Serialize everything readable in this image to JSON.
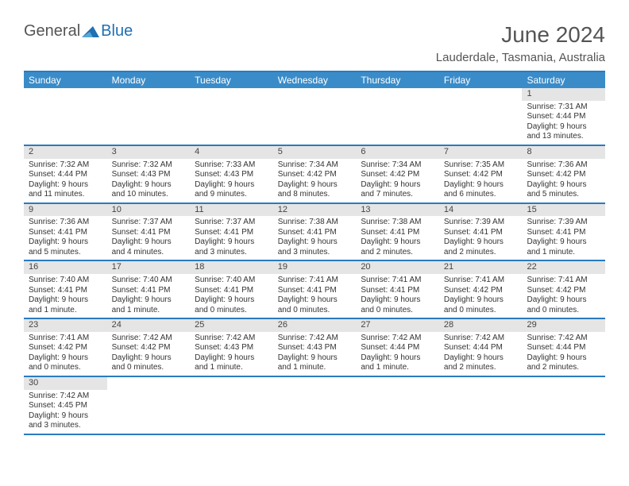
{
  "brand": {
    "text_general": "General",
    "text_blue": "Blue",
    "triangle_color": "#1f6fb2"
  },
  "header": {
    "month_title": "June 2024",
    "location": "Lauderdale, Tasmania, Australia"
  },
  "colors": {
    "header_bar": "#3a8cc9",
    "header_text": "#ffffff",
    "row_divider": "#2a7bbf",
    "daynum_bg": "#e5e5e5",
    "body_text": "#333333"
  },
  "day_headers": [
    "Sunday",
    "Monday",
    "Tuesday",
    "Wednesday",
    "Thursday",
    "Friday",
    "Saturday"
  ],
  "weeks": [
    [
      {
        "empty": true
      },
      {
        "empty": true
      },
      {
        "empty": true
      },
      {
        "empty": true
      },
      {
        "empty": true
      },
      {
        "empty": true
      },
      {
        "day": "1",
        "sunrise": "Sunrise: 7:31 AM",
        "sunset": "Sunset: 4:44 PM",
        "daylight": "Daylight: 9 hours and 13 minutes."
      }
    ],
    [
      {
        "day": "2",
        "sunrise": "Sunrise: 7:32 AM",
        "sunset": "Sunset: 4:44 PM",
        "daylight": "Daylight: 9 hours and 11 minutes."
      },
      {
        "day": "3",
        "sunrise": "Sunrise: 7:32 AM",
        "sunset": "Sunset: 4:43 PM",
        "daylight": "Daylight: 9 hours and 10 minutes."
      },
      {
        "day": "4",
        "sunrise": "Sunrise: 7:33 AM",
        "sunset": "Sunset: 4:43 PM",
        "daylight": "Daylight: 9 hours and 9 minutes."
      },
      {
        "day": "5",
        "sunrise": "Sunrise: 7:34 AM",
        "sunset": "Sunset: 4:42 PM",
        "daylight": "Daylight: 9 hours and 8 minutes."
      },
      {
        "day": "6",
        "sunrise": "Sunrise: 7:34 AM",
        "sunset": "Sunset: 4:42 PM",
        "daylight": "Daylight: 9 hours and 7 minutes."
      },
      {
        "day": "7",
        "sunrise": "Sunrise: 7:35 AM",
        "sunset": "Sunset: 4:42 PM",
        "daylight": "Daylight: 9 hours and 6 minutes."
      },
      {
        "day": "8",
        "sunrise": "Sunrise: 7:36 AM",
        "sunset": "Sunset: 4:42 PM",
        "daylight": "Daylight: 9 hours and 5 minutes."
      }
    ],
    [
      {
        "day": "9",
        "sunrise": "Sunrise: 7:36 AM",
        "sunset": "Sunset: 4:41 PM",
        "daylight": "Daylight: 9 hours and 5 minutes."
      },
      {
        "day": "10",
        "sunrise": "Sunrise: 7:37 AM",
        "sunset": "Sunset: 4:41 PM",
        "daylight": "Daylight: 9 hours and 4 minutes."
      },
      {
        "day": "11",
        "sunrise": "Sunrise: 7:37 AM",
        "sunset": "Sunset: 4:41 PM",
        "daylight": "Daylight: 9 hours and 3 minutes."
      },
      {
        "day": "12",
        "sunrise": "Sunrise: 7:38 AM",
        "sunset": "Sunset: 4:41 PM",
        "daylight": "Daylight: 9 hours and 3 minutes."
      },
      {
        "day": "13",
        "sunrise": "Sunrise: 7:38 AM",
        "sunset": "Sunset: 4:41 PM",
        "daylight": "Daylight: 9 hours and 2 minutes."
      },
      {
        "day": "14",
        "sunrise": "Sunrise: 7:39 AM",
        "sunset": "Sunset: 4:41 PM",
        "daylight": "Daylight: 9 hours and 2 minutes."
      },
      {
        "day": "15",
        "sunrise": "Sunrise: 7:39 AM",
        "sunset": "Sunset: 4:41 PM",
        "daylight": "Daylight: 9 hours and 1 minute."
      }
    ],
    [
      {
        "day": "16",
        "sunrise": "Sunrise: 7:40 AM",
        "sunset": "Sunset: 4:41 PM",
        "daylight": "Daylight: 9 hours and 1 minute."
      },
      {
        "day": "17",
        "sunrise": "Sunrise: 7:40 AM",
        "sunset": "Sunset: 4:41 PM",
        "daylight": "Daylight: 9 hours and 1 minute."
      },
      {
        "day": "18",
        "sunrise": "Sunrise: 7:40 AM",
        "sunset": "Sunset: 4:41 PM",
        "daylight": "Daylight: 9 hours and 0 minutes."
      },
      {
        "day": "19",
        "sunrise": "Sunrise: 7:41 AM",
        "sunset": "Sunset: 4:41 PM",
        "daylight": "Daylight: 9 hours and 0 minutes."
      },
      {
        "day": "20",
        "sunrise": "Sunrise: 7:41 AM",
        "sunset": "Sunset: 4:41 PM",
        "daylight": "Daylight: 9 hours and 0 minutes."
      },
      {
        "day": "21",
        "sunrise": "Sunrise: 7:41 AM",
        "sunset": "Sunset: 4:42 PM",
        "daylight": "Daylight: 9 hours and 0 minutes."
      },
      {
        "day": "22",
        "sunrise": "Sunrise: 7:41 AM",
        "sunset": "Sunset: 4:42 PM",
        "daylight": "Daylight: 9 hours and 0 minutes."
      }
    ],
    [
      {
        "day": "23",
        "sunrise": "Sunrise: 7:41 AM",
        "sunset": "Sunset: 4:42 PM",
        "daylight": "Daylight: 9 hours and 0 minutes."
      },
      {
        "day": "24",
        "sunrise": "Sunrise: 7:42 AM",
        "sunset": "Sunset: 4:42 PM",
        "daylight": "Daylight: 9 hours and 0 minutes."
      },
      {
        "day": "25",
        "sunrise": "Sunrise: 7:42 AM",
        "sunset": "Sunset: 4:43 PM",
        "daylight": "Daylight: 9 hours and 1 minute."
      },
      {
        "day": "26",
        "sunrise": "Sunrise: 7:42 AM",
        "sunset": "Sunset: 4:43 PM",
        "daylight": "Daylight: 9 hours and 1 minute."
      },
      {
        "day": "27",
        "sunrise": "Sunrise: 7:42 AM",
        "sunset": "Sunset: 4:44 PM",
        "daylight": "Daylight: 9 hours and 1 minute."
      },
      {
        "day": "28",
        "sunrise": "Sunrise: 7:42 AM",
        "sunset": "Sunset: 4:44 PM",
        "daylight": "Daylight: 9 hours and 2 minutes."
      },
      {
        "day": "29",
        "sunrise": "Sunrise: 7:42 AM",
        "sunset": "Sunset: 4:44 PM",
        "daylight": "Daylight: 9 hours and 2 minutes."
      }
    ],
    [
      {
        "day": "30",
        "sunrise": "Sunrise: 7:42 AM",
        "sunset": "Sunset: 4:45 PM",
        "daylight": "Daylight: 9 hours and 3 minutes."
      },
      {
        "empty": true
      },
      {
        "empty": true
      },
      {
        "empty": true
      },
      {
        "empty": true
      },
      {
        "empty": true
      },
      {
        "empty": true
      }
    ]
  ]
}
